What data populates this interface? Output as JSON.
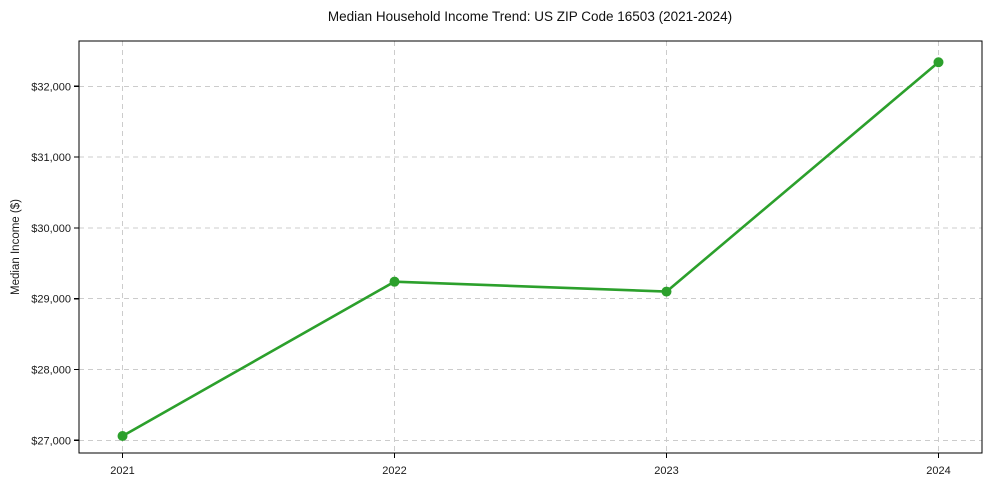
{
  "chart_data": {
    "type": "line",
    "title": "Median Household Income Trend: US ZIP Code 16503 (2021-2024)",
    "ylabel": "Median Income ($)",
    "xlabel": "",
    "x": [
      2021,
      2022,
      2023,
      2024
    ],
    "x_labels": [
      "2021",
      "2022",
      "2023",
      "2024"
    ],
    "values": [
      27060,
      29240,
      29100,
      32340
    ],
    "yticks": [
      27000,
      28000,
      29000,
      30000,
      31000,
      32000
    ],
    "ytick_labels": [
      "$27,000",
      "$28,000",
      "$29,000",
      "$30,000",
      "$31,000",
      "$32,000"
    ],
    "ylim": [
      26820,
      32640
    ],
    "xlim": [
      2020.84,
      2024.16
    ],
    "grid": true,
    "grid_style": "dashed",
    "legend": false,
    "line_color": "#2ca02c",
    "marker_color": "#2ca02c",
    "marker": "circle",
    "grid_color": "#cccccc",
    "axis_color": "#000000",
    "text_color": "#1a1a1a",
    "background_color": "#ffffff"
  }
}
